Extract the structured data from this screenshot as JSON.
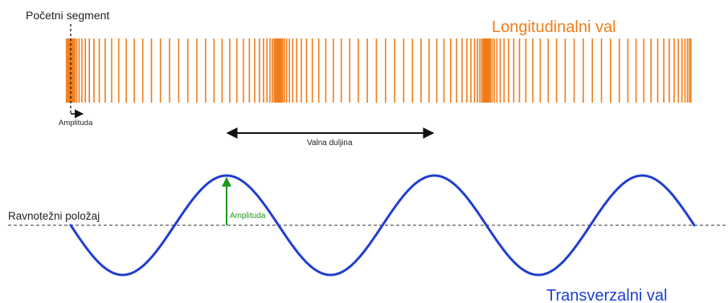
{
  "labels": {
    "initial_segment": "Početni segment",
    "longitudinal_title": "Longitudinalni val",
    "longitudinal_amplitude": "Amplituda",
    "wavelength": "Valna duljina",
    "equilibrium": "Ravnotežni položaj",
    "transverse_amplitude": "Amplituda",
    "transverse_title": "Transverzalni val"
  },
  "colors": {
    "longitudinal": "#f07c1b",
    "transverse": "#1f3fd0",
    "amplitude_arrow": "#1a9a1a",
    "text": "#222222"
  },
  "wave": {
    "cycles": 3
  }
}
